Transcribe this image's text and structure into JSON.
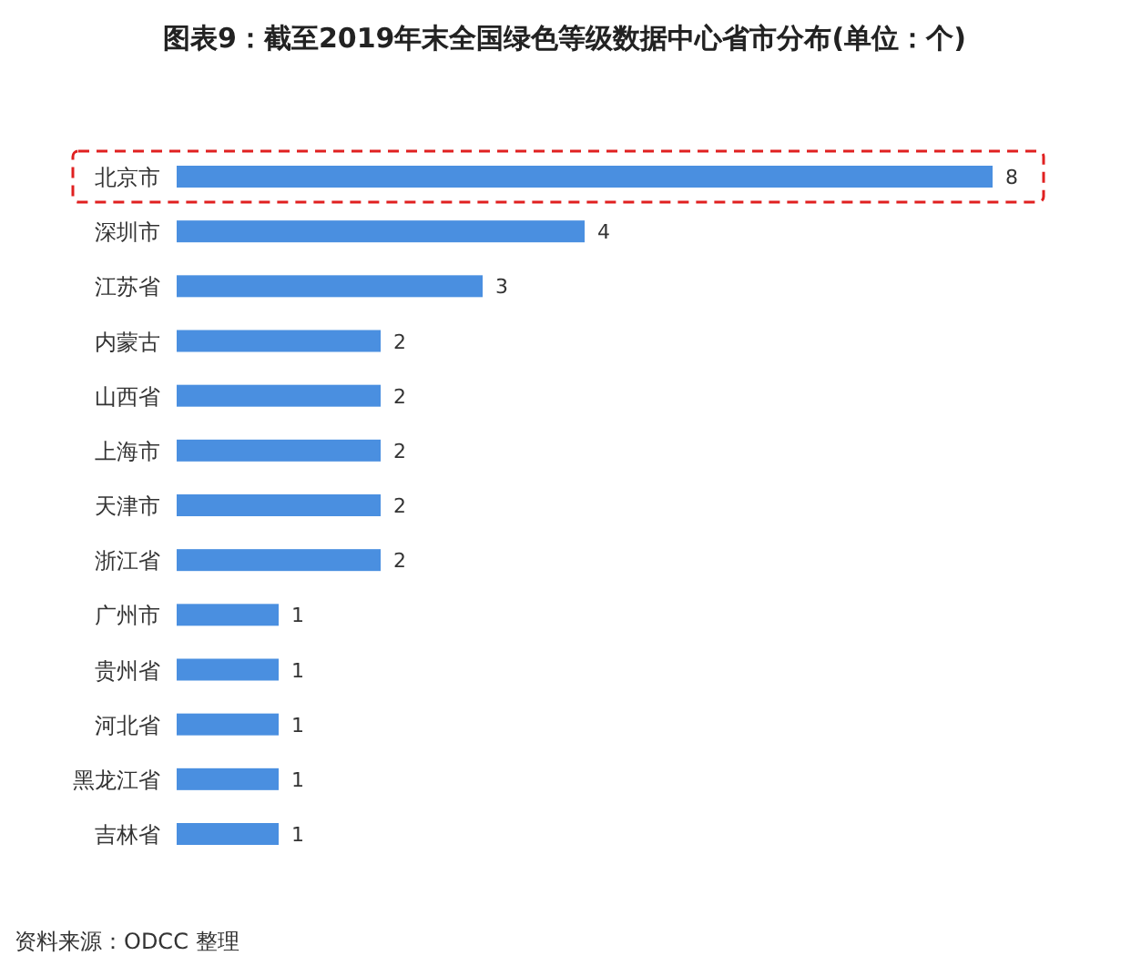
{
  "chart_data": {
    "type": "bar",
    "orientation": "horizontal",
    "title": "图表9：截至2019年末全国绿色等级数据中心省市分布(单位：个)",
    "categories": [
      "北京市",
      "深圳市",
      "江苏省",
      "内蒙古",
      "山西省",
      "上海市",
      "天津市",
      "浙江省",
      "广州市",
      "贵州省",
      "河北省",
      "黑龙江省",
      "吉林省"
    ],
    "values": [
      8,
      4,
      3,
      2,
      2,
      2,
      2,
      2,
      1,
      1,
      1,
      1,
      1
    ],
    "color": "#4a8fe0",
    "data_labels": true,
    "annotations": [
      "资料来源：ODCC 整理"
    ]
  }
}
